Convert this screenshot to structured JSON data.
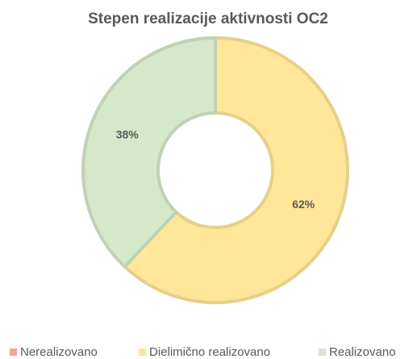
{
  "chart_data": {
    "type": "donut",
    "title": "Stepen realizacije aktivnosti OC2",
    "categories": [
      "Nerealizovano",
      "Dielimično realizovano",
      "Realizovano"
    ],
    "values": [
      0,
      62,
      38
    ],
    "value_labels": [
      null,
      "62%",
      "38%"
    ],
    "colors": [
      "#f4a58f",
      "#ffe699",
      "#d5e8c9"
    ],
    "legend": "bottom"
  }
}
